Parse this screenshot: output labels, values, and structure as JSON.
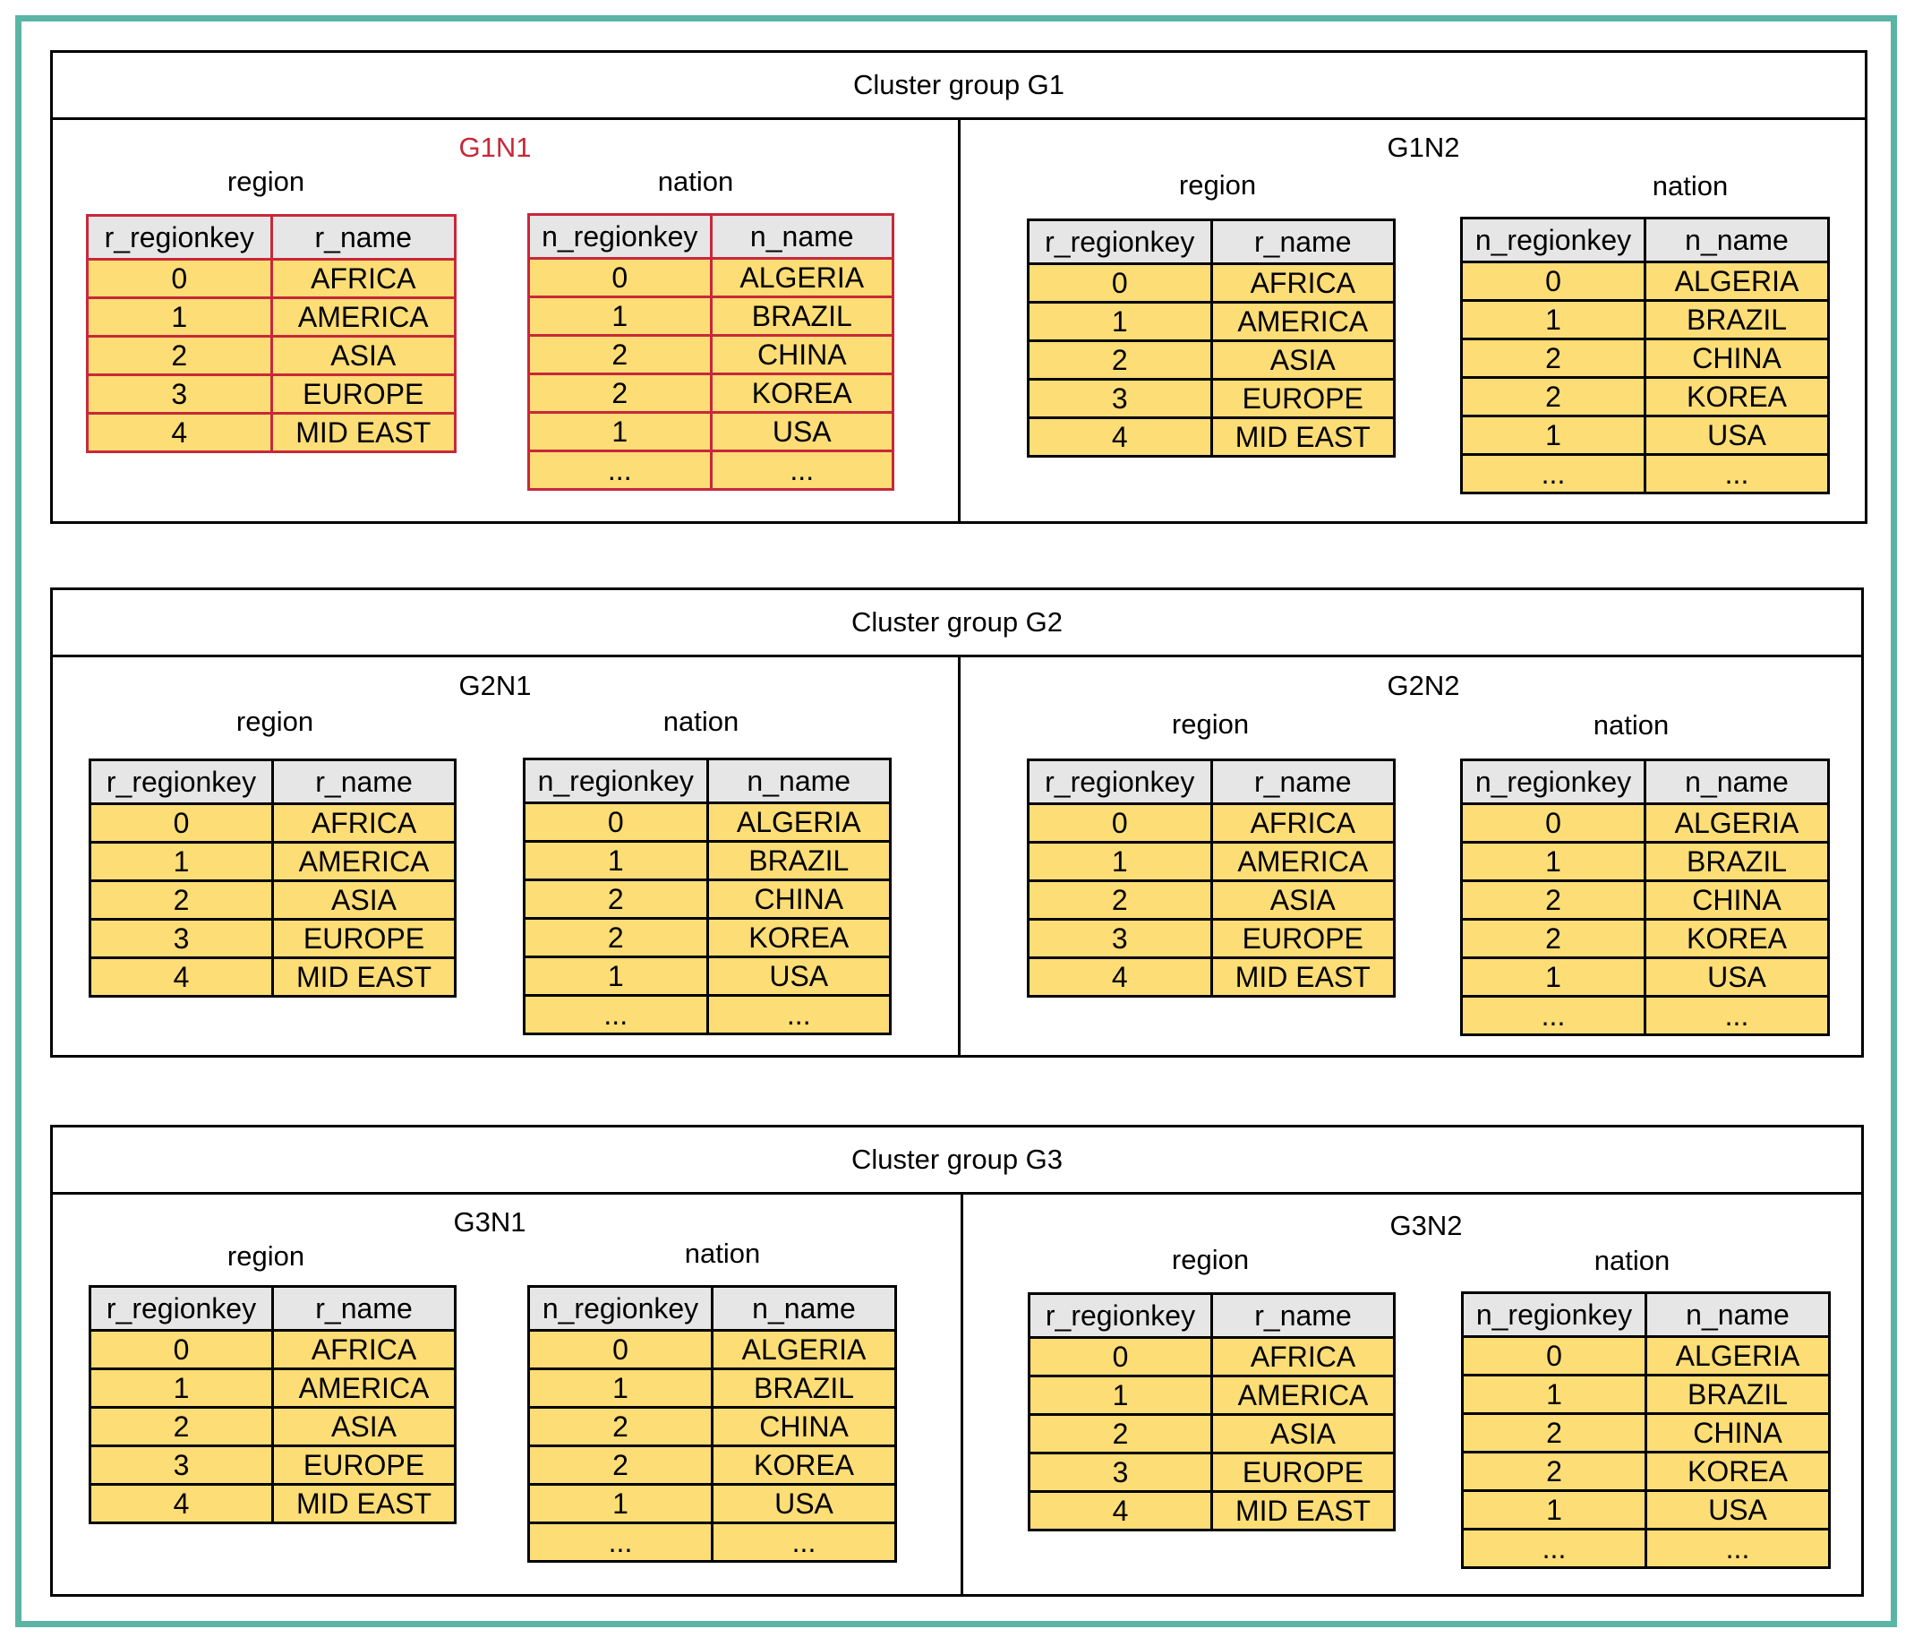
{
  "groups": [
    {
      "title": "Cluster group G1",
      "nodes": [
        {
          "label": "G1N1",
          "highlight": true
        },
        {
          "label": "G1N2",
          "highlight": false
        }
      ]
    },
    {
      "title": "Cluster group G2",
      "nodes": [
        {
          "label": "G2N1",
          "highlight": false
        },
        {
          "label": "G2N2",
          "highlight": false
        }
      ]
    },
    {
      "title": "Cluster group G3",
      "nodes": [
        {
          "label": "G3N1",
          "highlight": false
        },
        {
          "label": "G3N2",
          "highlight": false
        }
      ]
    }
  ],
  "region_table": {
    "name": "region",
    "headers": [
      "r_regionkey",
      "r_name"
    ],
    "rows": [
      [
        "0",
        "AFRICA"
      ],
      [
        "1",
        "AMERICA"
      ],
      [
        "2",
        "ASIA"
      ],
      [
        "3",
        "EUROPE"
      ],
      [
        "4",
        "MID EAST"
      ]
    ]
  },
  "nation_table": {
    "name": "nation",
    "headers": [
      "n_regionkey",
      "n_name"
    ],
    "rows": [
      [
        "0",
        "ALGERIA"
      ],
      [
        "1",
        "BRAZIL"
      ],
      [
        "2",
        "CHINA"
      ],
      [
        "2",
        "KOREA"
      ],
      [
        "1",
        "USA"
      ],
      [
        "...",
        "..."
      ]
    ]
  },
  "colors": {
    "frame": "#5bb5a5",
    "highlight": "#c8283a",
    "cell_fill": "#fddd75",
    "header_fill": "#e6e6e6"
  }
}
